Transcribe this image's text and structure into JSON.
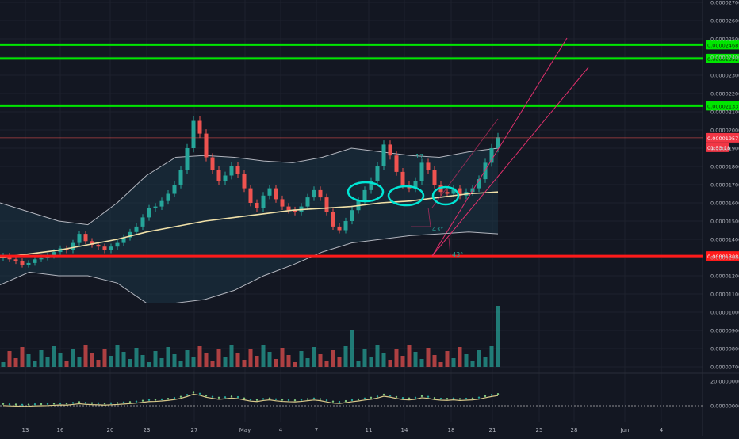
{
  "chart_data": {
    "type": "candlestick",
    "theme": "dark",
    "colors": {
      "background": "#131722",
      "grid": "#1e222d",
      "up": "#26a69a",
      "down": "#ef5350",
      "band_line": "#b2b5be",
      "band_fill": "#1c3446",
      "ma": "#f0e0a8",
      "support_resistance_green": "#00e600",
      "support_red": "#ff1a1a",
      "channel": "#e0306c",
      "annotation_circle": "#00e5d4",
      "axis_text": "#b2b5be",
      "price_label_bg": "#f23645"
    },
    "price_axis": {
      "min": 7e-06,
      "max": 2.7e-05,
      "ticks": [
        "0.00002700",
        "0.00002600",
        "0.00002500",
        "0.00002400",
        "0.00002300",
        "0.00002200",
        "0.00002100",
        "0.00002000",
        "0.00001900",
        "0.00001800",
        "0.00001700",
        "0.00001600",
        "0.00001500",
        "0.00001400",
        "0.00001300",
        "0.00001200",
        "0.00001100",
        "0.00001000",
        "0.00000900",
        "0.00000800",
        "0.00000700"
      ]
    },
    "time_axis": {
      "ticks": [
        "13",
        "16",
        "20",
        "23",
        "27",
        "May",
        "4",
        "7",
        "11",
        "14",
        "18",
        "21",
        "25",
        "28",
        "Jun",
        "4"
      ]
    },
    "horizontal_levels": [
      {
        "price": 2.468e-05,
        "label": "0.00002468",
        "color": "green"
      },
      {
        "price": 2.392e-05,
        "label": "0.00002392",
        "color": "green"
      },
      {
        "price": 2.133e-05,
        "label": "0.00002133",
        "color": "green"
      },
      {
        "price": 1.308e-05,
        "label": "0.00001308",
        "color": "red"
      }
    ],
    "last_price": {
      "price": 1.957e-05,
      "label": "0.00001957",
      "countdown": "01:53:18"
    },
    "annotations": [
      {
        "text": "43°"
      },
      {
        "text": "43°"
      },
      {
        "text": "17"
      }
    ],
    "oscillator": {
      "ticks": [
        "20.00000000",
        "0.00000000"
      ]
    },
    "candles_close": [
      1.31e-05,
      1.29e-05,
      1.28e-05,
      1.26e-05,
      1.27e-05,
      1.29e-05,
      1.3e-05,
      1.31e-05,
      1.33e-05,
      1.35e-05,
      1.34e-05,
      1.38e-05,
      1.43e-05,
      1.39e-05,
      1.37e-05,
      1.36e-05,
      1.34e-05,
      1.36e-05,
      1.38e-05,
      1.41e-05,
      1.44e-05,
      1.47e-05,
      1.52e-05,
      1.57e-05,
      1.58e-05,
      1.61e-05,
      1.65e-05,
      1.7e-05,
      1.78e-05,
      1.9e-05,
      2.05e-05,
      1.98e-05,
      1.85e-05,
      1.78e-05,
      1.72e-05,
      1.75e-05,
      1.8e-05,
      1.76e-05,
      1.68e-05,
      1.6e-05,
      1.57e-05,
      1.64e-05,
      1.68e-05,
      1.62e-05,
      1.58e-05,
      1.56e-05,
      1.55e-05,
      1.58e-05,
      1.63e-05,
      1.67e-05,
      1.63e-05,
      1.55e-05,
      1.47e-05,
      1.45e-05,
      1.5e-05,
      1.56e-05,
      1.61e-05,
      1.67e-05,
      1.72e-05,
      1.8e-05,
      1.92e-05,
      1.86e-05,
      1.77e-05,
      1.7e-05,
      1.68e-05,
      1.72e-05,
      1.82e-05,
      1.78e-05,
      1.7e-05,
      1.66e-05,
      1.65e-05,
      1.68e-05,
      1.64e-05,
      1.66e-05,
      1.68e-05,
      1.73e-05,
      1.82e-05,
      1.9e-05,
      1.96e-05
    ],
    "ma_values": [
      1.3e-05,
      1.32e-05,
      1.34e-05,
      1.37e-05,
      1.4e-05,
      1.44e-05,
      1.47e-05,
      1.5e-05,
      1.52e-05,
      1.54e-05,
      1.56e-05,
      1.57e-05,
      1.58e-05,
      1.6e-05,
      1.61e-05,
      1.63e-05,
      1.65e-05,
      1.66e-05
    ],
    "upper_band": [
      1.6e-05,
      1.55e-05,
      1.5e-05,
      1.48e-05,
      1.6e-05,
      1.75e-05,
      1.85e-05,
      1.86e-05,
      1.85e-05,
      1.83e-05,
      1.82e-05,
      1.85e-05,
      1.9e-05,
      1.88e-05,
      1.86e-05,
      1.85e-05,
      1.88e-05,
      1.9e-05
    ],
    "lower_band": [
      1.15e-05,
      1.22e-05,
      1.2e-05,
      1.2e-05,
      1.16e-05,
      1.05e-05,
      1.05e-05,
      1.07e-05,
      1.12e-05,
      1.2e-05,
      1.26e-05,
      1.33e-05,
      1.38e-05,
      1.4e-05,
      1.42e-05,
      1.43e-05,
      1.44e-05,
      1.43e-05
    ]
  }
}
